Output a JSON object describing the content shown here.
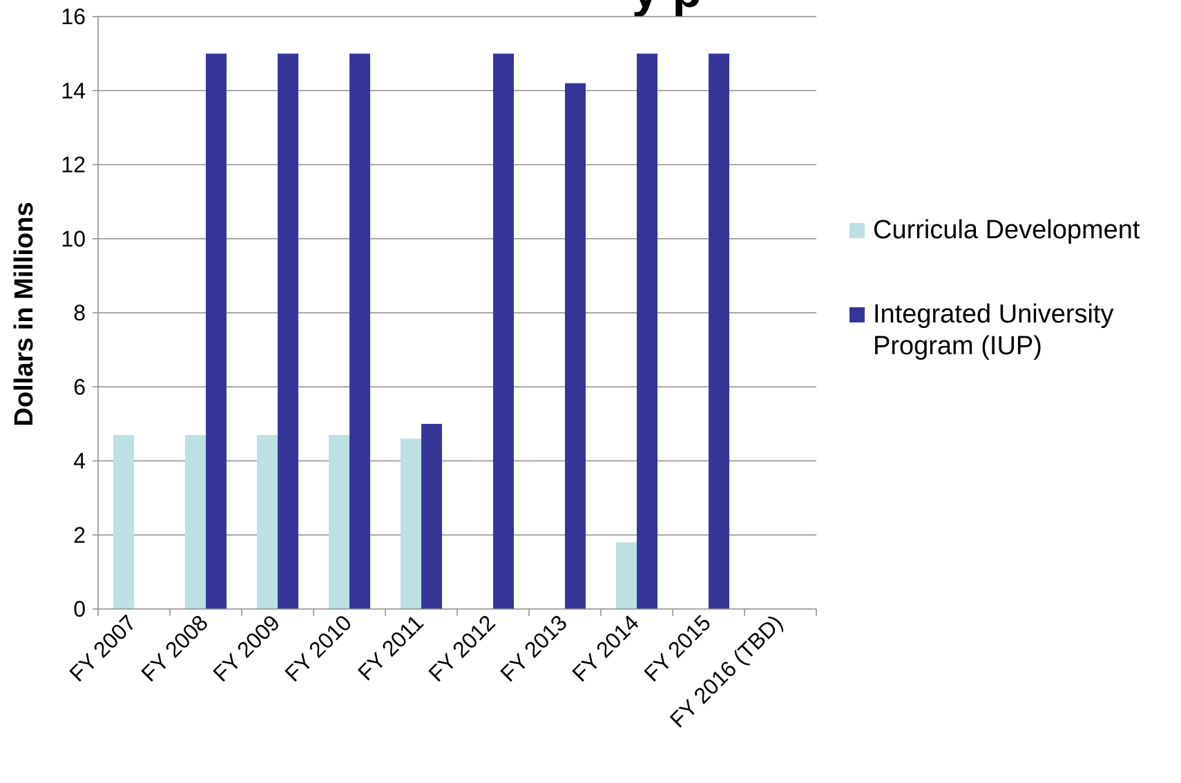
{
  "chart_data": {
    "type": "bar",
    "title_fragment": "y p",
    "ylabel": "Dollars in Millions",
    "ylim": [
      0,
      16
    ],
    "yticks": [
      "0",
      "2",
      "4",
      "6",
      "8",
      "10",
      "12",
      "14",
      "16"
    ],
    "grid": true,
    "legend_position": "right",
    "categories": [
      "FY 2007",
      "FY 2008",
      "FY 2009",
      "FY 2010",
      "FY 2011",
      "FY 2012",
      "FY 2013",
      "FY 2014",
      "FY 2015",
      "FY 2016 (TBD)"
    ],
    "series": [
      {
        "name": "Curricula Development",
        "color": "#BCE0E3",
        "values": [
          4.7,
          4.7,
          4.7,
          4.7,
          4.6,
          0,
          0,
          1.8,
          0,
          0
        ]
      },
      {
        "name": "Integrated University Program (IUP)",
        "color": "#363699",
        "values": [
          0,
          15,
          15,
          15,
          5,
          15,
          14.2,
          15,
          15,
          0
        ]
      }
    ]
  }
}
